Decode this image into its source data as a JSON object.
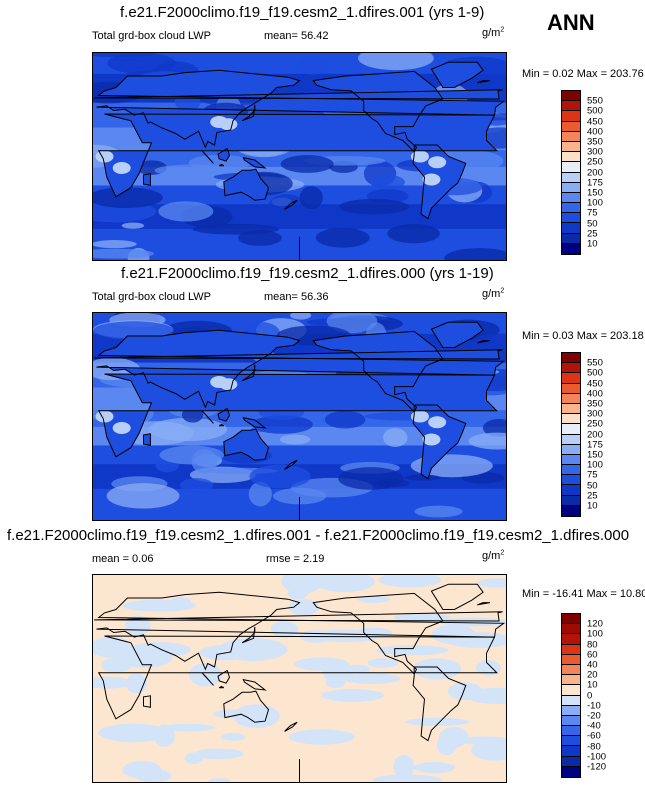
{
  "season": "ANN",
  "panels": [
    {
      "title": "f.e21.F2000climo.f19_f19.cesm2_1.dfires.001 (yrs 1-9)",
      "left_label": "Total grd-box cloud LWP",
      "mid_label": "mean=  56.42",
      "unit": "g/m",
      "unit_sup": "2",
      "minmax": "Min =   0.02 Max = 203.76",
      "type": "field",
      "levels": [
        "10",
        "25",
        "50",
        "75",
        "100",
        "150",
        "175",
        "200",
        "250",
        "300",
        "350",
        "400",
        "450",
        "500",
        "550"
      ]
    },
    {
      "title": "f.e21.F2000climo.f19_f19.cesm2_1.dfires.000 (yrs 1-19)",
      "left_label": "Total grd-box cloud LWP",
      "mid_label": "mean=  56.36",
      "unit": "g/m",
      "unit_sup": "2",
      "minmax": "Min =   0.03 Max = 203.18",
      "type": "field",
      "levels": [
        "10",
        "25",
        "50",
        "75",
        "100",
        "150",
        "175",
        "200",
        "250",
        "300",
        "350",
        "400",
        "450",
        "500",
        "550"
      ]
    },
    {
      "title": "f.e21.F2000climo.f19_f19.cesm2_1.dfires.001 - f.e21.F2000climo.f19_f19.cesm2_1.dfires.000",
      "left_label": "mean =   0.06",
      "mid_label": "rmse =   2.19",
      "unit": "g/m",
      "unit_sup": "2",
      "minmax": "Min = -16.41 Max =  10.80",
      "type": "diff",
      "levels": [
        "-120",
        "-100",
        "-80",
        "-60",
        "-40",
        "-20",
        "-10",
        "0",
        "10",
        "20",
        "40",
        "60",
        "80",
        "100",
        "120"
      ]
    }
  ],
  "colors": {
    "field_palette": [
      "#000080",
      "#0a2aa8",
      "#1038c8",
      "#1e4ee0",
      "#3366e8",
      "#5a88f0",
      "#8aaef5",
      "#b8cff8",
      "#e6eefa",
      "#fde0c8",
      "#f9b48a",
      "#f4845a",
      "#ec5a30",
      "#dc3414",
      "#b41408",
      "#800000"
    ],
    "diff_palette": [
      "#000080",
      "#0a2aa8",
      "#1038c8",
      "#1e4ee0",
      "#3366e8",
      "#5a88f0",
      "#8aaef5",
      "#d4e4f8",
      "#fde6d0",
      "#f9b48a",
      "#f4845a",
      "#ec5a30",
      "#dc3414",
      "#b41408",
      "#a00a04",
      "#800000"
    ]
  }
}
